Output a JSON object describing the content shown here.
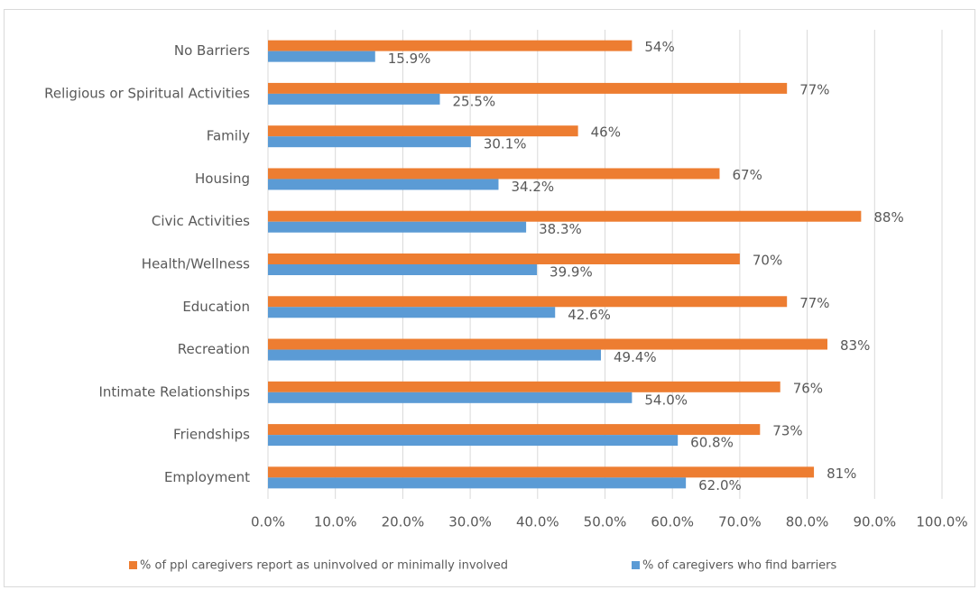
{
  "chart_data": {
    "type": "bar",
    "orientation": "horizontal",
    "categories": [
      "No Barriers",
      "Religious or Spiritual Activities",
      "Family",
      "Housing",
      "Civic Activities",
      "Health/Wellness",
      "Education",
      "Recreation",
      "Intimate Relationships",
      "Friendships",
      "Employment"
    ],
    "series": [
      {
        "name": "% of ppl caregivers report as uninvolved or minimally involved",
        "color": "#ed7d31",
        "values": [
          54,
          77,
          46,
          67,
          88,
          70,
          77,
          83,
          76,
          73,
          81
        ],
        "value_labels": [
          "54%",
          "77%",
          "46%",
          "67%",
          "88%",
          "70%",
          "77%",
          "83%",
          "76%",
          "73%",
          "81%"
        ]
      },
      {
        "name": "% of caregivers who find barriers",
        "color": "#5b9bd5",
        "values": [
          15.9,
          25.5,
          30.1,
          34.2,
          38.3,
          39.9,
          42.6,
          49.4,
          54.0,
          60.8,
          62.0
        ],
        "value_labels": [
          "15.9%",
          "25.5%",
          "30.1%",
          "34.2%",
          "38.3%",
          "39.9%",
          "42.6%",
          "49.4%",
          "54.0%",
          "60.8%",
          "62.0%"
        ]
      }
    ],
    "xlim": [
      0,
      100
    ],
    "xticks": [
      {
        "value": 0,
        "label": "0.0%"
      },
      {
        "value": 10,
        "label": "10.0%"
      },
      {
        "value": 20,
        "label": "20.0%"
      },
      {
        "value": 30,
        "label": "30.0%"
      },
      {
        "value": 40,
        "label": "40.0%"
      },
      {
        "value": 50,
        "label": "50.0%"
      },
      {
        "value": 60,
        "label": "60.0%"
      },
      {
        "value": 70,
        "label": "70.0%"
      },
      {
        "value": 80,
        "label": "80.0%"
      },
      {
        "value": 90,
        "label": "90.0%"
      },
      {
        "value": 100,
        "label": "100.0%"
      }
    ],
    "grid": true,
    "legend": "bottom"
  }
}
